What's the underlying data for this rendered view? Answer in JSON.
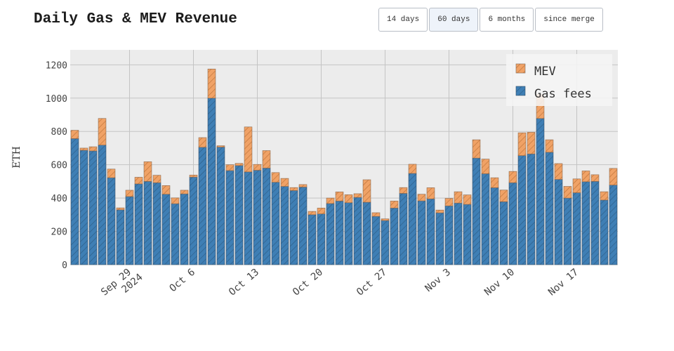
{
  "title": "Daily Gas & MEV Revenue",
  "range_buttons": [
    {
      "label": "14 days",
      "active": false
    },
    {
      "label": "60 days",
      "active": true
    },
    {
      "label": "6 months",
      "active": false
    },
    {
      "label": "since merge",
      "active": false
    }
  ],
  "chart_data": {
    "type": "bar",
    "stacked": true,
    "ylabel": "ETH",
    "ylim": [
      0,
      1290
    ],
    "yticks": [
      0,
      200,
      400,
      600,
      800,
      1000,
      1200
    ],
    "x": [
      "2024-09-23",
      "2024-09-24",
      "2024-09-25",
      "2024-09-26",
      "2024-09-27",
      "2024-09-28",
      "2024-09-29",
      "2024-09-30",
      "2024-10-01",
      "2024-10-02",
      "2024-10-03",
      "2024-10-04",
      "2024-10-05",
      "2024-10-06",
      "2024-10-07",
      "2024-10-08",
      "2024-10-09",
      "2024-10-10",
      "2024-10-11",
      "2024-10-12",
      "2024-10-13",
      "2024-10-14",
      "2024-10-15",
      "2024-10-16",
      "2024-10-17",
      "2024-10-18",
      "2024-10-19",
      "2024-10-20",
      "2024-10-21",
      "2024-10-22",
      "2024-10-23",
      "2024-10-24",
      "2024-10-25",
      "2024-10-26",
      "2024-10-27",
      "2024-10-28",
      "2024-10-29",
      "2024-10-30",
      "2024-10-31",
      "2024-11-01",
      "2024-11-02",
      "2024-11-03",
      "2024-11-04",
      "2024-11-05",
      "2024-11-06",
      "2024-11-07",
      "2024-11-08",
      "2024-11-09",
      "2024-11-10",
      "2024-11-11",
      "2024-11-12",
      "2024-11-13",
      "2024-11-14",
      "2024-11-15",
      "2024-11-16",
      "2024-11-17",
      "2024-11-18",
      "2024-11-19",
      "2024-11-20",
      "2024-11-21"
    ],
    "x_ticks": [
      {
        "date": "2024-09-29",
        "label": "Sep 29",
        "sublabel": "2024"
      },
      {
        "date": "2024-10-06",
        "label": "Oct 6",
        "sublabel": ""
      },
      {
        "date": "2024-10-13",
        "label": "Oct 13",
        "sublabel": ""
      },
      {
        "date": "2024-10-20",
        "label": "Oct 20",
        "sublabel": ""
      },
      {
        "date": "2024-10-27",
        "label": "Oct 27",
        "sublabel": ""
      },
      {
        "date": "2024-11-03",
        "label": "Nov 3",
        "sublabel": ""
      },
      {
        "date": "2024-11-10",
        "label": "Nov 10",
        "sublabel": ""
      },
      {
        "date": "2024-11-17",
        "label": "Nov 17",
        "sublabel": ""
      }
    ],
    "series": [
      {
        "name": "Gas fees",
        "color": "#3f7fb5",
        "values": [
          757,
          687,
          683,
          718,
          522,
          329,
          409,
          485,
          500,
          492,
          423,
          366,
          425,
          526,
          705,
          1000,
          706,
          565,
          595,
          557,
          567,
          580,
          495,
          470,
          445,
          466,
          300,
          305,
          367,
          382,
          372,
          404,
          375,
          290,
          265,
          340,
          428,
          548,
          383,
          395,
          311,
          353,
          370,
          362,
          640,
          546,
          462,
          378,
          492,
          655,
          665,
          878,
          675,
          512,
          400,
          432,
          498,
          500,
          388,
          478
        ]
      },
      {
        "name": "MEV",
        "color": "#f0a266",
        "values": [
          50,
          13,
          25,
          160,
          52,
          12,
          38,
          40,
          118,
          45,
          52,
          35,
          22,
          12,
          58,
          175,
          8,
          35,
          13,
          270,
          35,
          105,
          58,
          48,
          18,
          15,
          20,
          35,
          33,
          55,
          48,
          22,
          135,
          22,
          10,
          42,
          35,
          55,
          40,
          67,
          17,
          45,
          68,
          57,
          110,
          88,
          60,
          70,
          68,
          137,
          130,
          145,
          75,
          95,
          70,
          83,
          65,
          40,
          50,
          100
        ]
      }
    ]
  }
}
